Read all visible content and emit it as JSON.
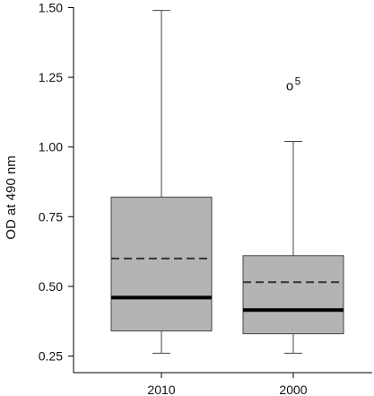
{
  "chart_data": {
    "type": "box",
    "ylabel": "OD at 490 nm",
    "xlabel": "",
    "ylim": [
      0.25,
      1.5
    ],
    "yticks": [
      "0.25",
      "0.50",
      "0.75",
      "1.00",
      "1.25",
      "1.50"
    ],
    "categories": [
      "2010",
      "2000"
    ],
    "boxes": [
      {
        "category": "2010",
        "whisker_low": 0.26,
        "q1": 0.34,
        "median": 0.46,
        "mean": 0.6,
        "q3": 0.82,
        "whisker_high": 1.49,
        "outliers": []
      },
      {
        "category": "2000",
        "whisker_low": 0.26,
        "q1": 0.33,
        "median": 0.415,
        "mean": 0.515,
        "q3": 0.61,
        "whisker_high": 1.02,
        "outliers": [
          {
            "value": 1.22,
            "marker": "o",
            "label": "5"
          }
        ]
      }
    ],
    "grid": false,
    "colors": {
      "box_fill": "#b4b4b4",
      "line": "#000000",
      "mean_line": "#333333"
    }
  }
}
